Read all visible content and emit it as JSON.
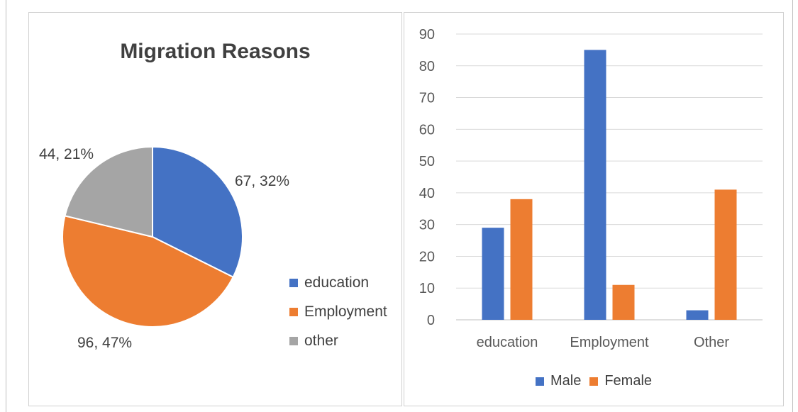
{
  "chart_data": [
    {
      "type": "pie",
      "title": "Migration Reasons",
      "slices": [
        {
          "label": "education",
          "value": 67,
          "percent": "32%",
          "color": "#4472c4"
        },
        {
          "label": "Employment",
          "value": 96,
          "percent": "47%",
          "color": "#ed7d31"
        },
        {
          "label": "other",
          "value": 44,
          "percent": "21%",
          "color": "#a5a5a5"
        }
      ],
      "data_labels": [
        "67, 32%",
        "96, 47%",
        "44, 21%"
      ],
      "legend": [
        "education",
        "Employment",
        "other"
      ],
      "legend_position": "right"
    },
    {
      "type": "bar",
      "categories": [
        "education",
        "Employment",
        "Other"
      ],
      "series": [
        {
          "name": "Male",
          "values": [
            29,
            85,
            3
          ],
          "color": "#4472c4"
        },
        {
          "name": "Female",
          "values": [
            38,
            11,
            41
          ],
          "color": "#ed7d31"
        }
      ],
      "ylim": [
        0,
        90
      ],
      "yticks": [
        "0",
        "10",
        "20",
        "30",
        "40",
        "50",
        "60",
        "70",
        "80",
        "90"
      ],
      "grid": true,
      "legend_position": "bottom"
    }
  ]
}
